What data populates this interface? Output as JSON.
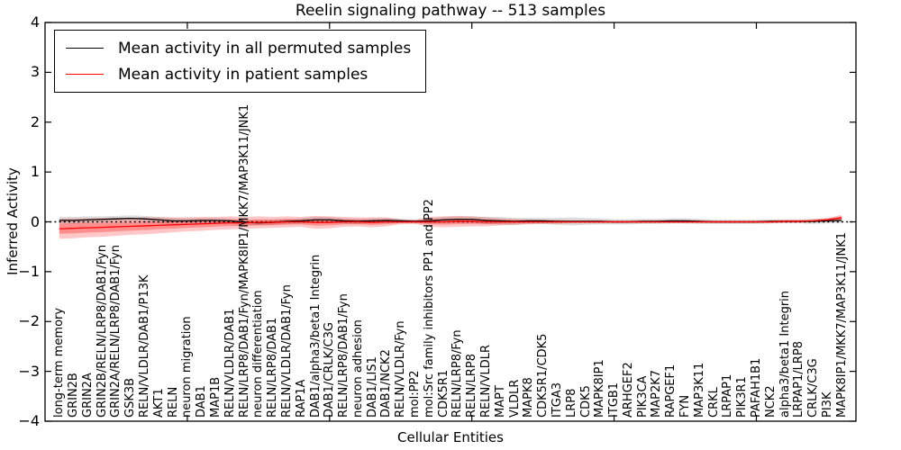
{
  "figure": {
    "title": "Reelin signaling pathway -- 513 samples",
    "xlabel": "Cellular Entities",
    "ylabel": "Inferred Activity",
    "background_color": "#ffffff"
  },
  "legend": {
    "items": [
      {
        "label": "Mean activity in all permuted samples",
        "color": "#000000"
      },
      {
        "label": "Mean activity in patient samples",
        "color": "#ff0000"
      }
    ]
  },
  "chart_data": {
    "type": "line",
    "title": "Reelin signaling pathway -- 513 samples",
    "xlabel": "Cellular Entities",
    "ylabel": "Inferred Activity",
    "ylim": [
      -4,
      4
    ],
    "yticks": [
      4,
      3,
      2,
      1,
      0,
      -1,
      -2,
      -3,
      -4
    ],
    "ytick_labels": [
      "4",
      "3",
      "2",
      "1",
      "0",
      "−1",
      "−2",
      "−3",
      "−4"
    ],
    "xtick_positions": [
      10,
      20,
      30,
      40,
      50
    ],
    "grid": false,
    "legend_position": "upper left",
    "zero_line": {
      "y": 0,
      "style": "dotted",
      "color": "#000000"
    },
    "categories": [
      "long-term memory",
      "GRIN2B",
      "GRIN2A",
      "GRIN2B/RELN/LRP8/DAB1/Fyn",
      "GRIN2A/RELN/LRP8/DAB1/Fyn",
      "GSK3B",
      "RELN/VLDLR/DAB1/P13K",
      "AKT1",
      "RELN",
      "neuron migration",
      "DAB1",
      "MAP1B",
      "RELN/VLDLR/DAB1",
      "RELN/LRP8/DAB1/Fyn/MAPK8IP1/MKK7/MAP3K11/JNK1",
      "neuron differentiation",
      "RELN/LRP8/DAB1",
      "RELN/VLDLR/DAB1/Fyn",
      "RAP1A",
      "DAB1/alpha3/beta1 Integrin",
      "DAB1/CRLK/C3G",
      "RELN/LRP8/DAB1/Fyn",
      "neuron adhesion",
      "DAB1/LIS1",
      "DAB1/NCK2",
      "RELN/VLDLR/Fyn",
      "mol:PP2",
      "mol:Src family inhibitors PP1 and PP2",
      "CDK5R1",
      "RELN/LRP8/Fyn",
      "RELN/LRP8",
      "RELN/VLDLR",
      "MAPT",
      "VLDLR",
      "MAPK8",
      "CDK5R1/CDK5",
      "ITGA3",
      "LRP8",
      "CDK5",
      "MAPK8IP1",
      "ITGB1",
      "ARHGEF2",
      "PIK3CA",
      "MAP2K7",
      "RAPGEF1",
      "FYN",
      "MAP3K11",
      "CRKL",
      "LRPAP1",
      "PIK3R1",
      "PAFAH1B1",
      "NCK2",
      "alpha3/beta1 Integrin",
      "LRPAP1/LRP8",
      "CRLK/C3G",
      "PI3K",
      "MAPK8IP1/MKK7/MAP3K11/JNK1"
    ],
    "series": [
      {
        "name": "Mean activity in all permuted samples",
        "color": "#000000",
        "band_color": "#aaaaaa",
        "values": [
          0.03,
          0.03,
          0.04,
          0.05,
          0.06,
          0.07,
          0.06,
          0.04,
          0.02,
          0.02,
          0.03,
          0.03,
          0.02,
          -0.01,
          -0.02,
          -0.01,
          0.01,
          0.02,
          0.04,
          0.04,
          0.02,
          0.01,
          0.02,
          0.03,
          0.02,
          0.01,
          0.02,
          0.04,
          0.05,
          0.05,
          0.03,
          0.02,
          0.01,
          0.02,
          0.02,
          0.01,
          0.01,
          0.01,
          0.01,
          0.0,
          0.0,
          0.01,
          0.01,
          0.02,
          0.02,
          0.01,
          0.0,
          0.0,
          0.0,
          0.0,
          0.01,
          0.01,
          0.01,
          0.01,
          0.02,
          0.03
        ],
        "std": [
          0.07,
          0.07,
          0.07,
          0.06,
          0.06,
          0.06,
          0.06,
          0.06,
          0.06,
          0.05,
          0.05,
          0.05,
          0.05,
          0.05,
          0.05,
          0.05,
          0.05,
          0.05,
          0.06,
          0.06,
          0.05,
          0.05,
          0.05,
          0.05,
          0.04,
          0.04,
          0.05,
          0.06,
          0.06,
          0.06,
          0.07,
          0.08,
          0.07,
          0.06,
          0.06,
          0.07,
          0.08,
          0.07,
          0.06,
          0.05,
          0.05,
          0.05,
          0.05,
          0.05,
          0.05,
          0.05,
          0.04,
          0.04,
          0.04,
          0.04,
          0.04,
          0.04,
          0.04,
          0.05,
          0.05,
          0.06
        ]
      },
      {
        "name": "Mean activity in patient samples",
        "color": "#ff0000",
        "band_color": "#ff0000",
        "values": [
          -0.14,
          -0.13,
          -0.12,
          -0.11,
          -0.1,
          -0.09,
          -0.08,
          -0.07,
          -0.06,
          -0.05,
          -0.04,
          -0.03,
          -0.02,
          -0.02,
          -0.01,
          -0.01,
          0.0,
          0.0,
          -0.01,
          -0.01,
          0.0,
          0.0,
          -0.01,
          0.0,
          0.0,
          0.0,
          0.0,
          0.0,
          0.01,
          0.01,
          0.0,
          0.0,
          0.0,
          0.0,
          0.0,
          0.0,
          0.0,
          0.0,
          0.0,
          0.0,
          0.0,
          0.0,
          0.0,
          0.0,
          0.0,
          0.0,
          0.0,
          0.0,
          0.0,
          0.0,
          0.0,
          0.01,
          0.01,
          0.02,
          0.04,
          0.08
        ],
        "std": [
          0.2,
          0.2,
          0.19,
          0.19,
          0.18,
          0.17,
          0.17,
          0.16,
          0.15,
          0.14,
          0.14,
          0.13,
          0.13,
          0.12,
          0.12,
          0.11,
          0.11,
          0.1,
          0.13,
          0.12,
          0.1,
          0.09,
          0.1,
          0.09,
          0.05,
          0.04,
          0.1,
          0.11,
          0.11,
          0.1,
          0.09,
          0.07,
          0.06,
          0.05,
          0.04,
          0.04,
          0.03,
          0.03,
          0.03,
          0.03,
          0.03,
          0.03,
          0.03,
          0.03,
          0.03,
          0.03,
          0.03,
          0.03,
          0.03,
          0.03,
          0.03,
          0.03,
          0.03,
          0.03,
          0.04,
          0.06
        ]
      }
    ]
  }
}
